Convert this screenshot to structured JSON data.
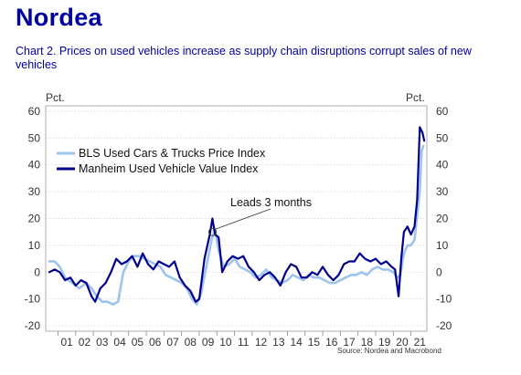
{
  "brand": {
    "logo_text": "Nordea",
    "color": "#0000a0"
  },
  "chart_data": {
    "type": "line",
    "title": "Chart 2. Prices on used vehicles increase as supply chain disruptions corrupt sales of new vehicles",
    "ylabel_left": "Pct.",
    "ylabel_right": "Pct.",
    "ylim": [
      -22,
      62
    ],
    "yticks": [
      -20,
      -10,
      0,
      10,
      20,
      30,
      40,
      50,
      60
    ],
    "xlim": [
      2000.3,
      2021.9
    ],
    "xticks": [
      "01",
      "02",
      "03",
      "04",
      "05",
      "06",
      "07",
      "08",
      "09",
      "10",
      "11",
      "12",
      "13",
      "14",
      "15",
      "16",
      "17",
      "18",
      "19",
      "20",
      "21"
    ],
    "grid": true,
    "legend_position": "top-left",
    "annotation": {
      "text": "Leads 3 months",
      "x": 2009.75,
      "y": 15
    },
    "source": "Source: Nordea and Macrobond",
    "series": [
      {
        "name": "BLS Used Cars & Trucks Price Index",
        "color": "#9dc4ee",
        "points": [
          [
            2000.5,
            4
          ],
          [
            2000.8,
            4
          ],
          [
            2001.1,
            2
          ],
          [
            2001.4,
            -2
          ],
          [
            2001.8,
            -4
          ],
          [
            2002.2,
            -6
          ],
          [
            2002.6,
            -4
          ],
          [
            2002.9,
            -6
          ],
          [
            2003.2,
            -9
          ],
          [
            2003.5,
            -11
          ],
          [
            2003.8,
            -11
          ],
          [
            2004.1,
            -12
          ],
          [
            2004.4,
            -11
          ],
          [
            2004.7,
            0
          ],
          [
            2005.0,
            4
          ],
          [
            2005.3,
            6
          ],
          [
            2005.6,
            6
          ],
          [
            2005.9,
            5
          ],
          [
            2006.2,
            4
          ],
          [
            2006.5,
            3
          ],
          [
            2006.8,
            2
          ],
          [
            2007.1,
            -1
          ],
          [
            2007.4,
            -2
          ],
          [
            2007.7,
            -3
          ],
          [
            2008.0,
            -4
          ],
          [
            2008.3,
            -6
          ],
          [
            2008.6,
            -10
          ],
          [
            2008.85,
            -12
          ],
          [
            2009.1,
            -8
          ],
          [
            2009.4,
            2
          ],
          [
            2009.7,
            12
          ],
          [
            2009.9,
            16
          ],
          [
            2010.1,
            8
          ],
          [
            2010.4,
            2
          ],
          [
            2010.7,
            3
          ],
          [
            2011.0,
            5
          ],
          [
            2011.3,
            2
          ],
          [
            2011.6,
            1
          ],
          [
            2011.9,
            0
          ],
          [
            2012.2,
            -2
          ],
          [
            2012.5,
            -1
          ],
          [
            2012.8,
            1
          ],
          [
            2013.1,
            -2
          ],
          [
            2013.4,
            -3
          ],
          [
            2013.7,
            -4
          ],
          [
            2014.0,
            -3
          ],
          [
            2014.3,
            -1
          ],
          [
            2014.6,
            -2
          ],
          [
            2014.9,
            -3
          ],
          [
            2015.2,
            -1
          ],
          [
            2015.5,
            -2
          ],
          [
            2015.8,
            -2
          ],
          [
            2016.1,
            -3
          ],
          [
            2016.4,
            -4
          ],
          [
            2016.7,
            -4
          ],
          [
            2017.0,
            -3
          ],
          [
            2017.3,
            -2
          ],
          [
            2017.6,
            -1
          ],
          [
            2017.9,
            -1
          ],
          [
            2018.2,
            0
          ],
          [
            2018.5,
            -1
          ],
          [
            2018.8,
            1
          ],
          [
            2019.1,
            2
          ],
          [
            2019.4,
            1
          ],
          [
            2019.7,
            1
          ],
          [
            2020.0,
            0
          ],
          [
            2020.2,
            -2
          ],
          [
            2020.4,
            -1
          ],
          [
            2020.6,
            7
          ],
          [
            2020.8,
            10
          ],
          [
            2021.0,
            10
          ],
          [
            2021.2,
            12
          ],
          [
            2021.35,
            21
          ],
          [
            2021.5,
            30
          ],
          [
            2021.6,
            45
          ],
          [
            2021.7,
            47
          ]
        ]
      },
      {
        "name": "Manheim Used Vehicle Value Index",
        "color": "#00008c",
        "points": [
          [
            2000.5,
            0
          ],
          [
            2000.8,
            1
          ],
          [
            2001.1,
            0
          ],
          [
            2001.4,
            -3
          ],
          [
            2001.7,
            -2
          ],
          [
            2002.0,
            -5
          ],
          [
            2002.3,
            -3
          ],
          [
            2002.6,
            -4
          ],
          [
            2002.9,
            -9
          ],
          [
            2003.1,
            -11
          ],
          [
            2003.4,
            -6
          ],
          [
            2003.7,
            -4
          ],
          [
            2004.0,
            0
          ],
          [
            2004.3,
            5
          ],
          [
            2004.6,
            3
          ],
          [
            2004.9,
            4
          ],
          [
            2005.2,
            6
          ],
          [
            2005.5,
            2
          ],
          [
            2005.8,
            7
          ],
          [
            2006.1,
            3
          ],
          [
            2006.4,
            1
          ],
          [
            2006.7,
            4
          ],
          [
            2007.0,
            3
          ],
          [
            2007.3,
            2
          ],
          [
            2007.6,
            4
          ],
          [
            2007.9,
            -2
          ],
          [
            2008.2,
            -5
          ],
          [
            2008.5,
            -7
          ],
          [
            2008.8,
            -11
          ],
          [
            2009.0,
            -10
          ],
          [
            2009.3,
            5
          ],
          [
            2009.6,
            14
          ],
          [
            2009.75,
            20
          ],
          [
            2009.9,
            14
          ],
          [
            2010.1,
            13
          ],
          [
            2010.3,
            0
          ],
          [
            2010.6,
            4
          ],
          [
            2010.9,
            6
          ],
          [
            2011.2,
            5
          ],
          [
            2011.5,
            6
          ],
          [
            2011.8,
            2
          ],
          [
            2012.1,
            0
          ],
          [
            2012.4,
            -3
          ],
          [
            2012.7,
            -1
          ],
          [
            2013.0,
            0
          ],
          [
            2013.3,
            -2
          ],
          [
            2013.6,
            -5
          ],
          [
            2013.9,
            0
          ],
          [
            2014.2,
            3
          ],
          [
            2014.5,
            2
          ],
          [
            2014.8,
            -2
          ],
          [
            2015.1,
            -2
          ],
          [
            2015.4,
            0
          ],
          [
            2015.7,
            -1
          ],
          [
            2016.0,
            2
          ],
          [
            2016.3,
            -1
          ],
          [
            2016.6,
            -3
          ],
          [
            2016.9,
            -1
          ],
          [
            2017.2,
            3
          ],
          [
            2017.5,
            4
          ],
          [
            2017.8,
            4
          ],
          [
            2018.1,
            7
          ],
          [
            2018.4,
            5
          ],
          [
            2018.7,
            4
          ],
          [
            2019.0,
            5
          ],
          [
            2019.3,
            3
          ],
          [
            2019.6,
            4
          ],
          [
            2019.9,
            2
          ],
          [
            2020.1,
            1
          ],
          [
            2020.3,
            -9
          ],
          [
            2020.45,
            5
          ],
          [
            2020.6,
            15
          ],
          [
            2020.8,
            17
          ],
          [
            2021.0,
            14
          ],
          [
            2021.2,
            17
          ],
          [
            2021.35,
            27
          ],
          [
            2021.5,
            54
          ],
          [
            2021.65,
            52
          ],
          [
            2021.75,
            49
          ]
        ]
      }
    ]
  }
}
